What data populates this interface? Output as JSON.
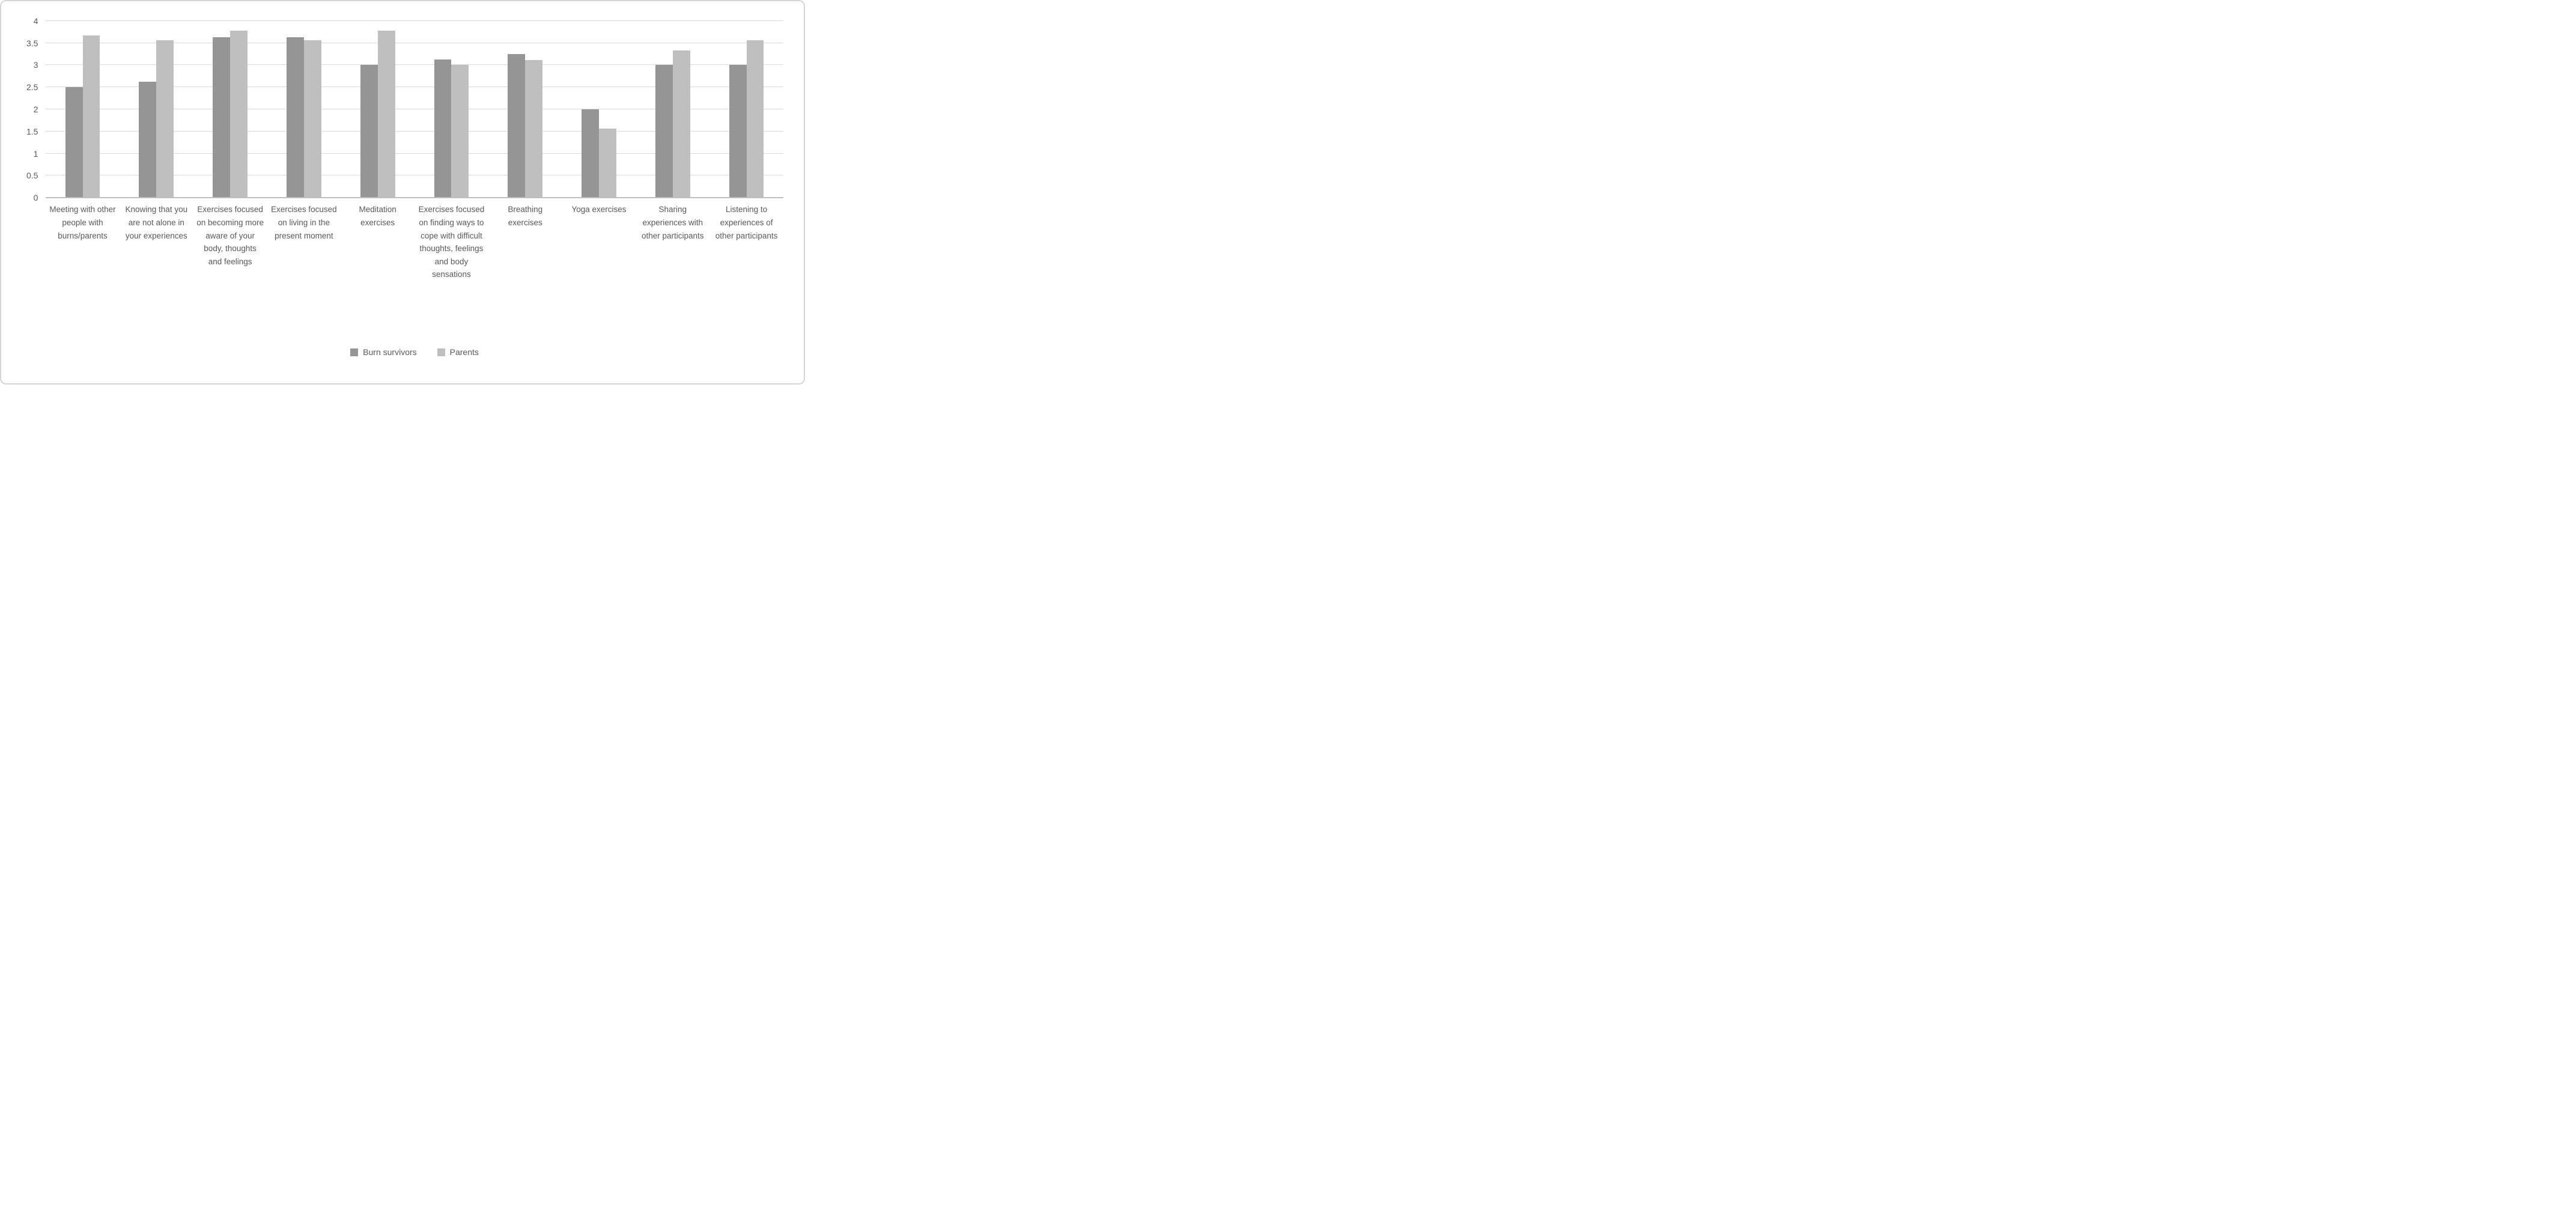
{
  "chart_data": {
    "type": "bar",
    "title": "",
    "xlabel": "",
    "ylabel": "",
    "categories": [
      "Meeting with other people with burns/parents",
      "Knowing that you are not alone in your experiences",
      "Exercises focused on becoming more aware of your body, thoughts and feelings",
      "Exercises focused on living in the present moment",
      "Meditation exercises",
      "Exercises focused on finding ways to cope with difficult thoughts, feelings and body sensations",
      "Breathing exercises",
      "Yoga exercises",
      "Sharing experiences with other participants",
      "Listening to experiences of other participants"
    ],
    "series": [
      {
        "name": "Burn survivors",
        "color": "#959595",
        "values": [
          2.5,
          2.63,
          3.63,
          3.63,
          3.0,
          3.13,
          3.25,
          2.0,
          3.0,
          3.0
        ]
      },
      {
        "name": "Parents",
        "color": "#bfbfbf",
        "values": [
          3.67,
          3.56,
          3.78,
          3.56,
          3.78,
          3.0,
          3.11,
          1.56,
          3.33,
          3.56
        ]
      }
    ],
    "ylim": [
      0,
      4
    ],
    "yticks": [
      0,
      0.5,
      1,
      1.5,
      2,
      2.5,
      3,
      3.5,
      4
    ],
    "grid": "horizontal",
    "legend_position": "bottom-center"
  },
  "styles": {
    "gridline_color": "#d9d9d9",
    "axis_line_color": "#bfbfbf",
    "text_color": "#595959",
    "frame_color": "#d6d6d6",
    "background": "#ffffff"
  }
}
